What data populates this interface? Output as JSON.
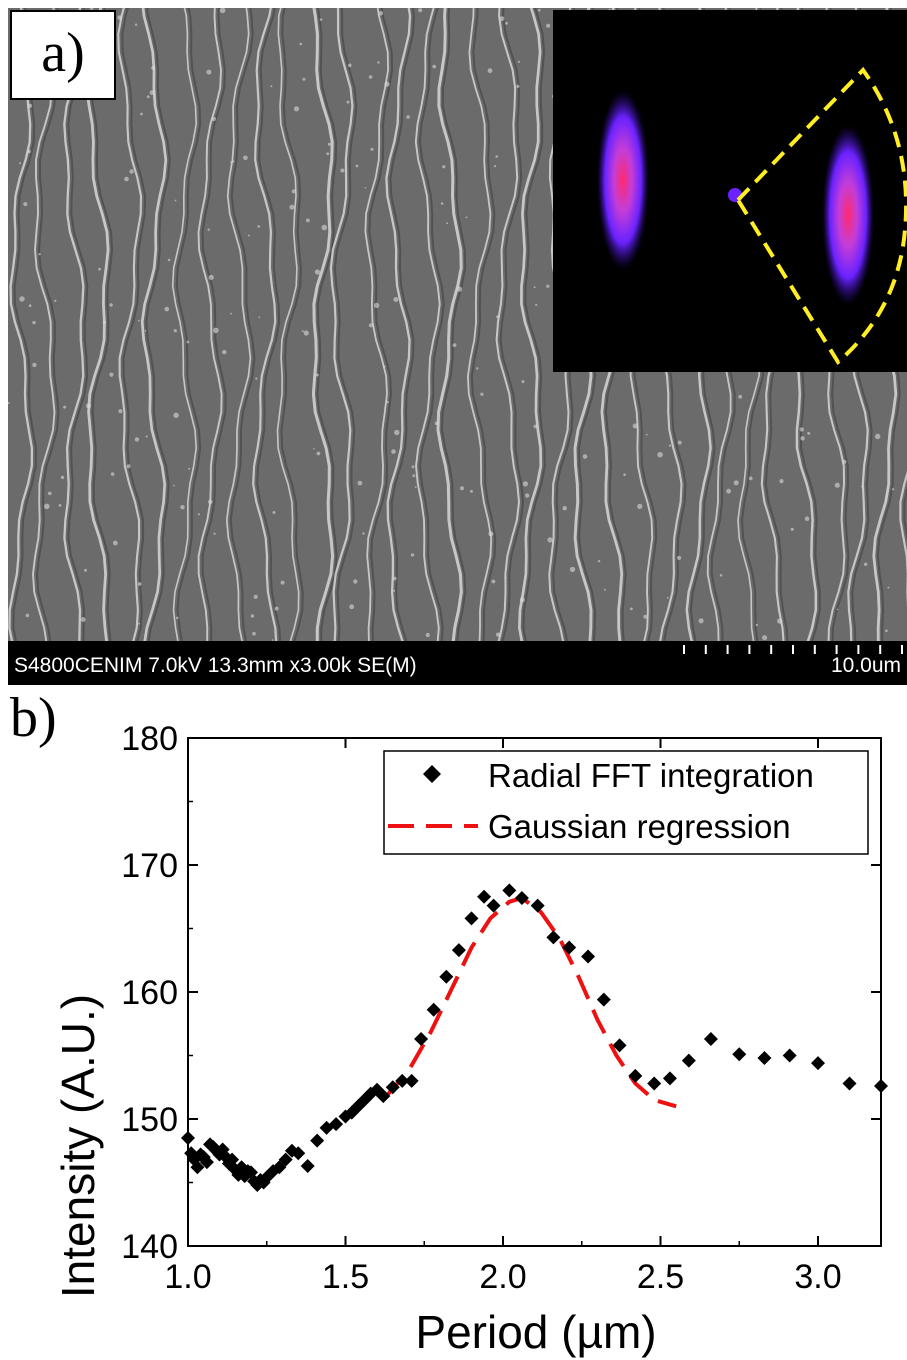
{
  "panel_a": {
    "label": "a)",
    "info_text": "S4800CENIM 7.0kV 13.3mm x3.00k SE(M)",
    "scale_label": "10.0um",
    "colors": {
      "background": "#6b6b6b",
      "ridge": "#e6e6e6",
      "inset": "#000000",
      "fft_spot": "#7a2cff",
      "fft_core": "#ff2a6d",
      "roi": "#ffee22"
    }
  },
  "panel_b": {
    "label": "b)"
  },
  "chart_data": {
    "type": "scatter",
    "title": "",
    "xlabel": "Period (µm)",
    "ylabel": "Intensity (A.U.)",
    "xlim": [
      1.0,
      3.2
    ],
    "ylim": [
      140,
      180
    ],
    "xticks": [
      "1.0",
      "1.5",
      "2.0",
      "2.5",
      "3.0"
    ],
    "yticks": [
      "140",
      "150",
      "160",
      "170",
      "180"
    ],
    "legend_position": "top-right",
    "series": [
      {
        "name": "Radial FFT integration",
        "style": "diamond-markers",
        "color": "#000000",
        "x": [
          1.0,
          1.01,
          1.02,
          1.03,
          1.04,
          1.05,
          1.06,
          1.07,
          1.08,
          1.09,
          1.1,
          1.11,
          1.12,
          1.13,
          1.14,
          1.15,
          1.16,
          1.17,
          1.18,
          1.19,
          1.2,
          1.21,
          1.22,
          1.23,
          1.24,
          1.25,
          1.27,
          1.29,
          1.31,
          1.33,
          1.35,
          1.38,
          1.41,
          1.44,
          1.47,
          1.5,
          1.52,
          1.54,
          1.56,
          1.58,
          1.6,
          1.62,
          1.65,
          1.68,
          1.71,
          1.74,
          1.78,
          1.82,
          1.86,
          1.9,
          1.94,
          1.97,
          2.02,
          2.06,
          2.11,
          2.16,
          2.21,
          2.27,
          2.32,
          2.37,
          2.42,
          2.48,
          2.53,
          2.59,
          2.66,
          2.75,
          2.83,
          2.91,
          3.0,
          3.1,
          3.2
        ],
        "y": [
          148.5,
          147.3,
          146.8,
          146.2,
          147.2,
          147.0,
          146.6,
          148.0,
          147.8,
          147.5,
          147.2,
          147.6,
          147.0,
          146.5,
          146.8,
          146.0,
          145.6,
          146.2,
          145.5,
          145.9,
          145.8,
          145.1,
          144.8,
          145.2,
          145.0,
          145.4,
          145.9,
          146.2,
          146.8,
          147.5,
          147.3,
          146.3,
          148.3,
          149.3,
          149.6,
          150.2,
          150.5,
          151.0,
          151.5,
          152.0,
          152.3,
          151.8,
          152.5,
          153.0,
          153.0,
          156.3,
          158.6,
          161.2,
          163.3,
          165.8,
          167.5,
          166.8,
          168.0,
          167.4,
          166.8,
          164.3,
          163.5,
          162.8,
          159.4,
          155.8,
          153.4,
          152.8,
          153.2,
          154.6,
          156.3,
          155.1,
          154.8,
          155.0,
          154.4,
          152.8,
          152.6
        ]
      },
      {
        "name": "Gaussian regression",
        "style": "dashed-line",
        "color": "#ee1111",
        "x": [
          1.63,
          1.7,
          1.77,
          1.84,
          1.9,
          1.96,
          2.02,
          2.06,
          2.12,
          2.18,
          2.24,
          2.3,
          2.36,
          2.42,
          2.48,
          2.55
        ],
        "y": [
          151.8,
          153.8,
          156.8,
          160.4,
          163.5,
          165.8,
          167.1,
          167.4,
          166.3,
          164.2,
          161.2,
          157.8,
          155.0,
          152.8,
          151.5,
          151.0
        ]
      }
    ]
  }
}
